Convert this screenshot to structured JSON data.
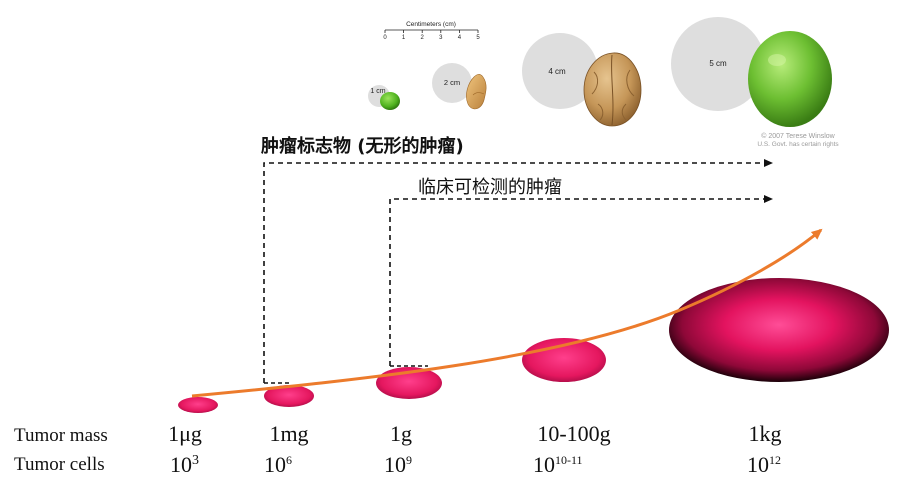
{
  "ruler": {
    "title": "Centimeters (cm)",
    "ticks": [
      "0",
      "1",
      "2",
      "3",
      "4",
      "5"
    ]
  },
  "objects": [
    {
      "size_label": "1 cm",
      "item": "pea"
    },
    {
      "size_label": "2 cm",
      "item": "peanut"
    },
    {
      "size_label": "4 cm",
      "item": "walnut"
    },
    {
      "size_label": "5 cm",
      "item": "lime"
    }
  ],
  "credit": {
    "line1": "© 2007 Terese Winslow",
    "line2": "U.S. Govt. has certain rights"
  },
  "markers": {
    "biomarker": "肿瘤标志物 (无形的肿瘤)",
    "clinical": "临床可检测的肿瘤"
  },
  "rows": {
    "mass_label": "Tumor mass",
    "cells_label": "Tumor cells"
  },
  "stages": [
    {
      "mass": "1μg",
      "cells_base": "10",
      "cells_exp": "3"
    },
    {
      "mass": "1mg",
      "cells_base": "10",
      "cells_exp": "6"
    },
    {
      "mass": "1g",
      "cells_base": "10",
      "cells_exp": "9"
    },
    {
      "mass": "10-100g",
      "cells_base": "10",
      "cells_exp": "10-11"
    },
    {
      "mass": "1kg",
      "cells_base": "10",
      "cells_exp": "12"
    }
  ],
  "colors": {
    "tumor_core": "#ff2d80",
    "tumor_mid": "#d6145a",
    "tumor_edge": "#1a0008",
    "growth_curve": "#ec7b2c",
    "dashed": "#111111",
    "size_circle": "#dedede",
    "pea": "#5cc02a",
    "lime": "#6fc034",
    "walnut": "#c9a06a",
    "peanut": "#d9a760"
  }
}
